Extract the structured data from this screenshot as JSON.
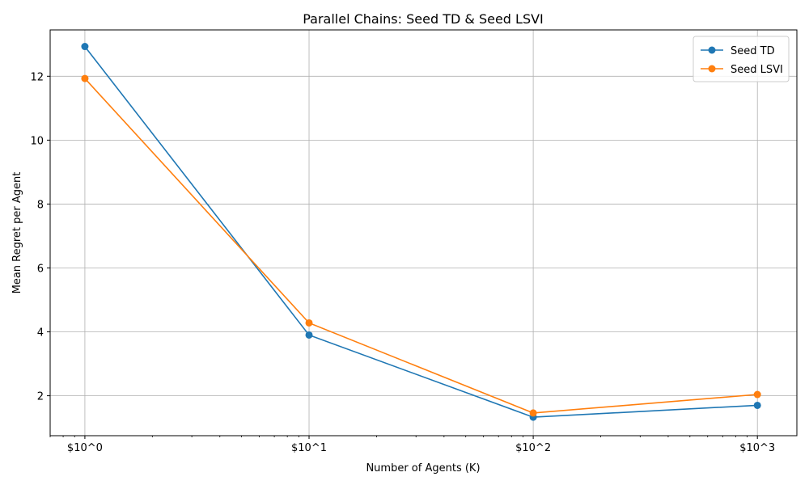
{
  "chart_data": {
    "type": "line",
    "title": "Parallel Chains: Seed TD & Seed LSVI",
    "xlabel": "Number of Agents (K)",
    "ylabel": "Mean Regret per Agent",
    "xscale": "log",
    "x": [
      1,
      10,
      100,
      1000
    ],
    "xtick_labels": [
      "$10^0",
      "$10^1",
      "$10^2",
      "$10^3"
    ],
    "xlim": [
      0.7,
      1500
    ],
    "ylim": [
      0.75,
      13.45
    ],
    "yticks": [
      2,
      4,
      6,
      8,
      10,
      12
    ],
    "grid": true,
    "legend_position": "top-right",
    "series": [
      {
        "name": "Seed TD",
        "color": "#1f77b4",
        "values": [
          12.93,
          3.9,
          1.33,
          1.7
        ]
      },
      {
        "name": "Seed LSVI",
        "color": "#ff7f0e",
        "values": [
          11.93,
          4.28,
          1.46,
          2.04
        ]
      }
    ]
  }
}
